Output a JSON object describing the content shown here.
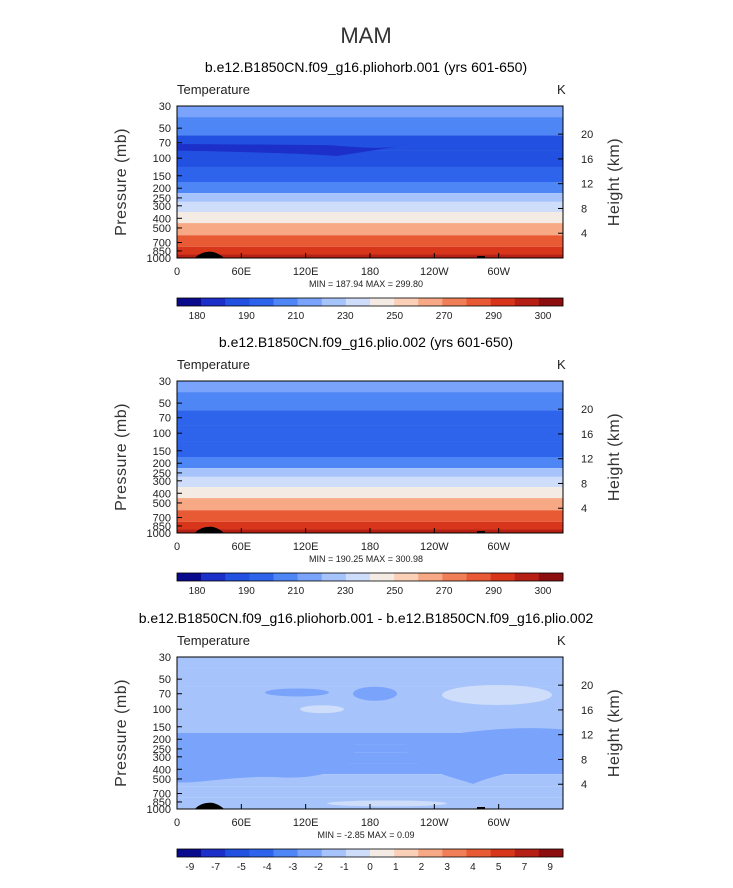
{
  "season_title": "MAM",
  "colors": {
    "temp_palette": [
      "#0a0a8c",
      "#1c2fc9",
      "#2250e0",
      "#2e64ec",
      "#4f86f5",
      "#7aa3fb",
      "#a6c3fb",
      "#cdddfa",
      "#f4ece4",
      "#fbd0b8",
      "#f7a884",
      "#f07f58",
      "#e85a34",
      "#d8361b",
      "#b51f14",
      "#8c0e0e"
    ],
    "diff_palette": [
      "#0a0a8c",
      "#1c2fc9",
      "#2250e0",
      "#2e64ec",
      "#4f86f5",
      "#7aa3fb",
      "#a6c3fb",
      "#cdddfa",
      "#f4ece4",
      "#fbd0b8",
      "#f7a884",
      "#f07f58",
      "#e85a34",
      "#d8361b",
      "#b51f14",
      "#8c0e0e"
    ]
  },
  "chart_data": [
    {
      "type": "heatmap",
      "title": "b.e12.B1850CN.f09_g16.pliohorb.001 (yrs 601-650)",
      "variable_label": "Temperature",
      "units": "K",
      "ylabel": "Pressure (mb)",
      "y2label": "Height (km)",
      "x_ticks": [
        "0",
        "60E",
        "120E",
        "180",
        "120W",
        "60W"
      ],
      "y_ticks": [
        "30",
        "50",
        "70",
        "100",
        "150",
        "200",
        "250",
        "300",
        "400",
        "500",
        "700",
        "850",
        "1000"
      ],
      "y2_ticks": [
        "20",
        "16",
        "12",
        "8",
        "4"
      ],
      "stats_text": "MIN = 187.94   MAX = 299.80",
      "min": 187.94,
      "max": 299.8,
      "colorbar_labels": [
        "180",
        "190",
        "210",
        "230",
        "250",
        "270",
        "290",
        "300"
      ],
      "profile": [
        {
          "p": 30,
          "bin": 5
        },
        {
          "p": 50,
          "bin": 4
        },
        {
          "p": 70,
          "bin": 2
        },
        {
          "p": 100,
          "bin": 2
        },
        {
          "p": 150,
          "bin": 3
        },
        {
          "p": 200,
          "bin": 4
        },
        {
          "p": 250,
          "bin": 6
        },
        {
          "p": 300,
          "bin": 7
        },
        {
          "p": 400,
          "bin": 8
        },
        {
          "p": 500,
          "bin": 10
        },
        {
          "p": 700,
          "bin": 12
        },
        {
          "p": 850,
          "bin": 13
        },
        {
          "p": 1000,
          "bin": 14
        }
      ]
    },
    {
      "type": "heatmap",
      "title": "b.e12.B1850CN.f09_g16.plio.002 (yrs 601-650)",
      "variable_label": "Temperature",
      "units": "K",
      "ylabel": "Pressure (mb)",
      "y2label": "Height (km)",
      "x_ticks": [
        "0",
        "60E",
        "120E",
        "180",
        "120W",
        "60W"
      ],
      "y_ticks": [
        "30",
        "50",
        "70",
        "100",
        "150",
        "200",
        "250",
        "300",
        "400",
        "500",
        "700",
        "850",
        "1000"
      ],
      "y2_ticks": [
        "20",
        "16",
        "12",
        "8",
        "4"
      ],
      "stats_text": "MIN = 190.25   MAX = 300.98",
      "min": 190.25,
      "max": 300.98,
      "colorbar_labels": [
        "180",
        "190",
        "210",
        "230",
        "250",
        "270",
        "290",
        "300"
      ],
      "profile": [
        {
          "p": 30,
          "bin": 5
        },
        {
          "p": 50,
          "bin": 4
        },
        {
          "p": 70,
          "bin": 3
        },
        {
          "p": 100,
          "bin": 3
        },
        {
          "p": 150,
          "bin": 3
        },
        {
          "p": 200,
          "bin": 4
        },
        {
          "p": 250,
          "bin": 6
        },
        {
          "p": 300,
          "bin": 7
        },
        {
          "p": 400,
          "bin": 8
        },
        {
          "p": 500,
          "bin": 10
        },
        {
          "p": 700,
          "bin": 12
        },
        {
          "p": 850,
          "bin": 13
        },
        {
          "p": 1000,
          "bin": 14
        }
      ]
    },
    {
      "type": "heatmap",
      "title": "b.e12.B1850CN.f09_g16.pliohorb.001 - b.e12.B1850CN.f09_g16.plio.002",
      "variable_label": "Temperature",
      "units": "K",
      "ylabel": "Pressure (mb)",
      "y2label": "Height (km)",
      "x_ticks": [
        "0",
        "60E",
        "120E",
        "180",
        "120W",
        "60W"
      ],
      "y_ticks": [
        "30",
        "50",
        "70",
        "100",
        "150",
        "200",
        "250",
        "300",
        "400",
        "500",
        "700",
        "850",
        "1000"
      ],
      "y2_ticks": [
        "20",
        "16",
        "12",
        "8",
        "4"
      ],
      "stats_text": "MIN =  -2.85   MAX =   0.09",
      "min": -2.85,
      "max": 0.09,
      "colorbar_labels": [
        "-9",
        "-7",
        "-5",
        "-4",
        "-3",
        "-2",
        "-1",
        "0",
        "1",
        "2",
        "3",
        "4",
        "5",
        "7",
        "9"
      ],
      "profile": [
        {
          "p": 30,
          "bin": 6
        },
        {
          "p": 50,
          "bin": 6
        },
        {
          "p": 70,
          "bin": 6
        },
        {
          "p": 100,
          "bin": 6
        },
        {
          "p": 150,
          "bin": 6
        },
        {
          "p": 200,
          "bin": 5
        },
        {
          "p": 250,
          "bin": 5
        },
        {
          "p": 300,
          "bin": 5
        },
        {
          "p": 400,
          "bin": 5
        },
        {
          "p": 500,
          "bin": 6
        },
        {
          "p": 700,
          "bin": 6
        },
        {
          "p": 850,
          "bin": 6
        },
        {
          "p": 1000,
          "bin": 6
        }
      ]
    }
  ]
}
